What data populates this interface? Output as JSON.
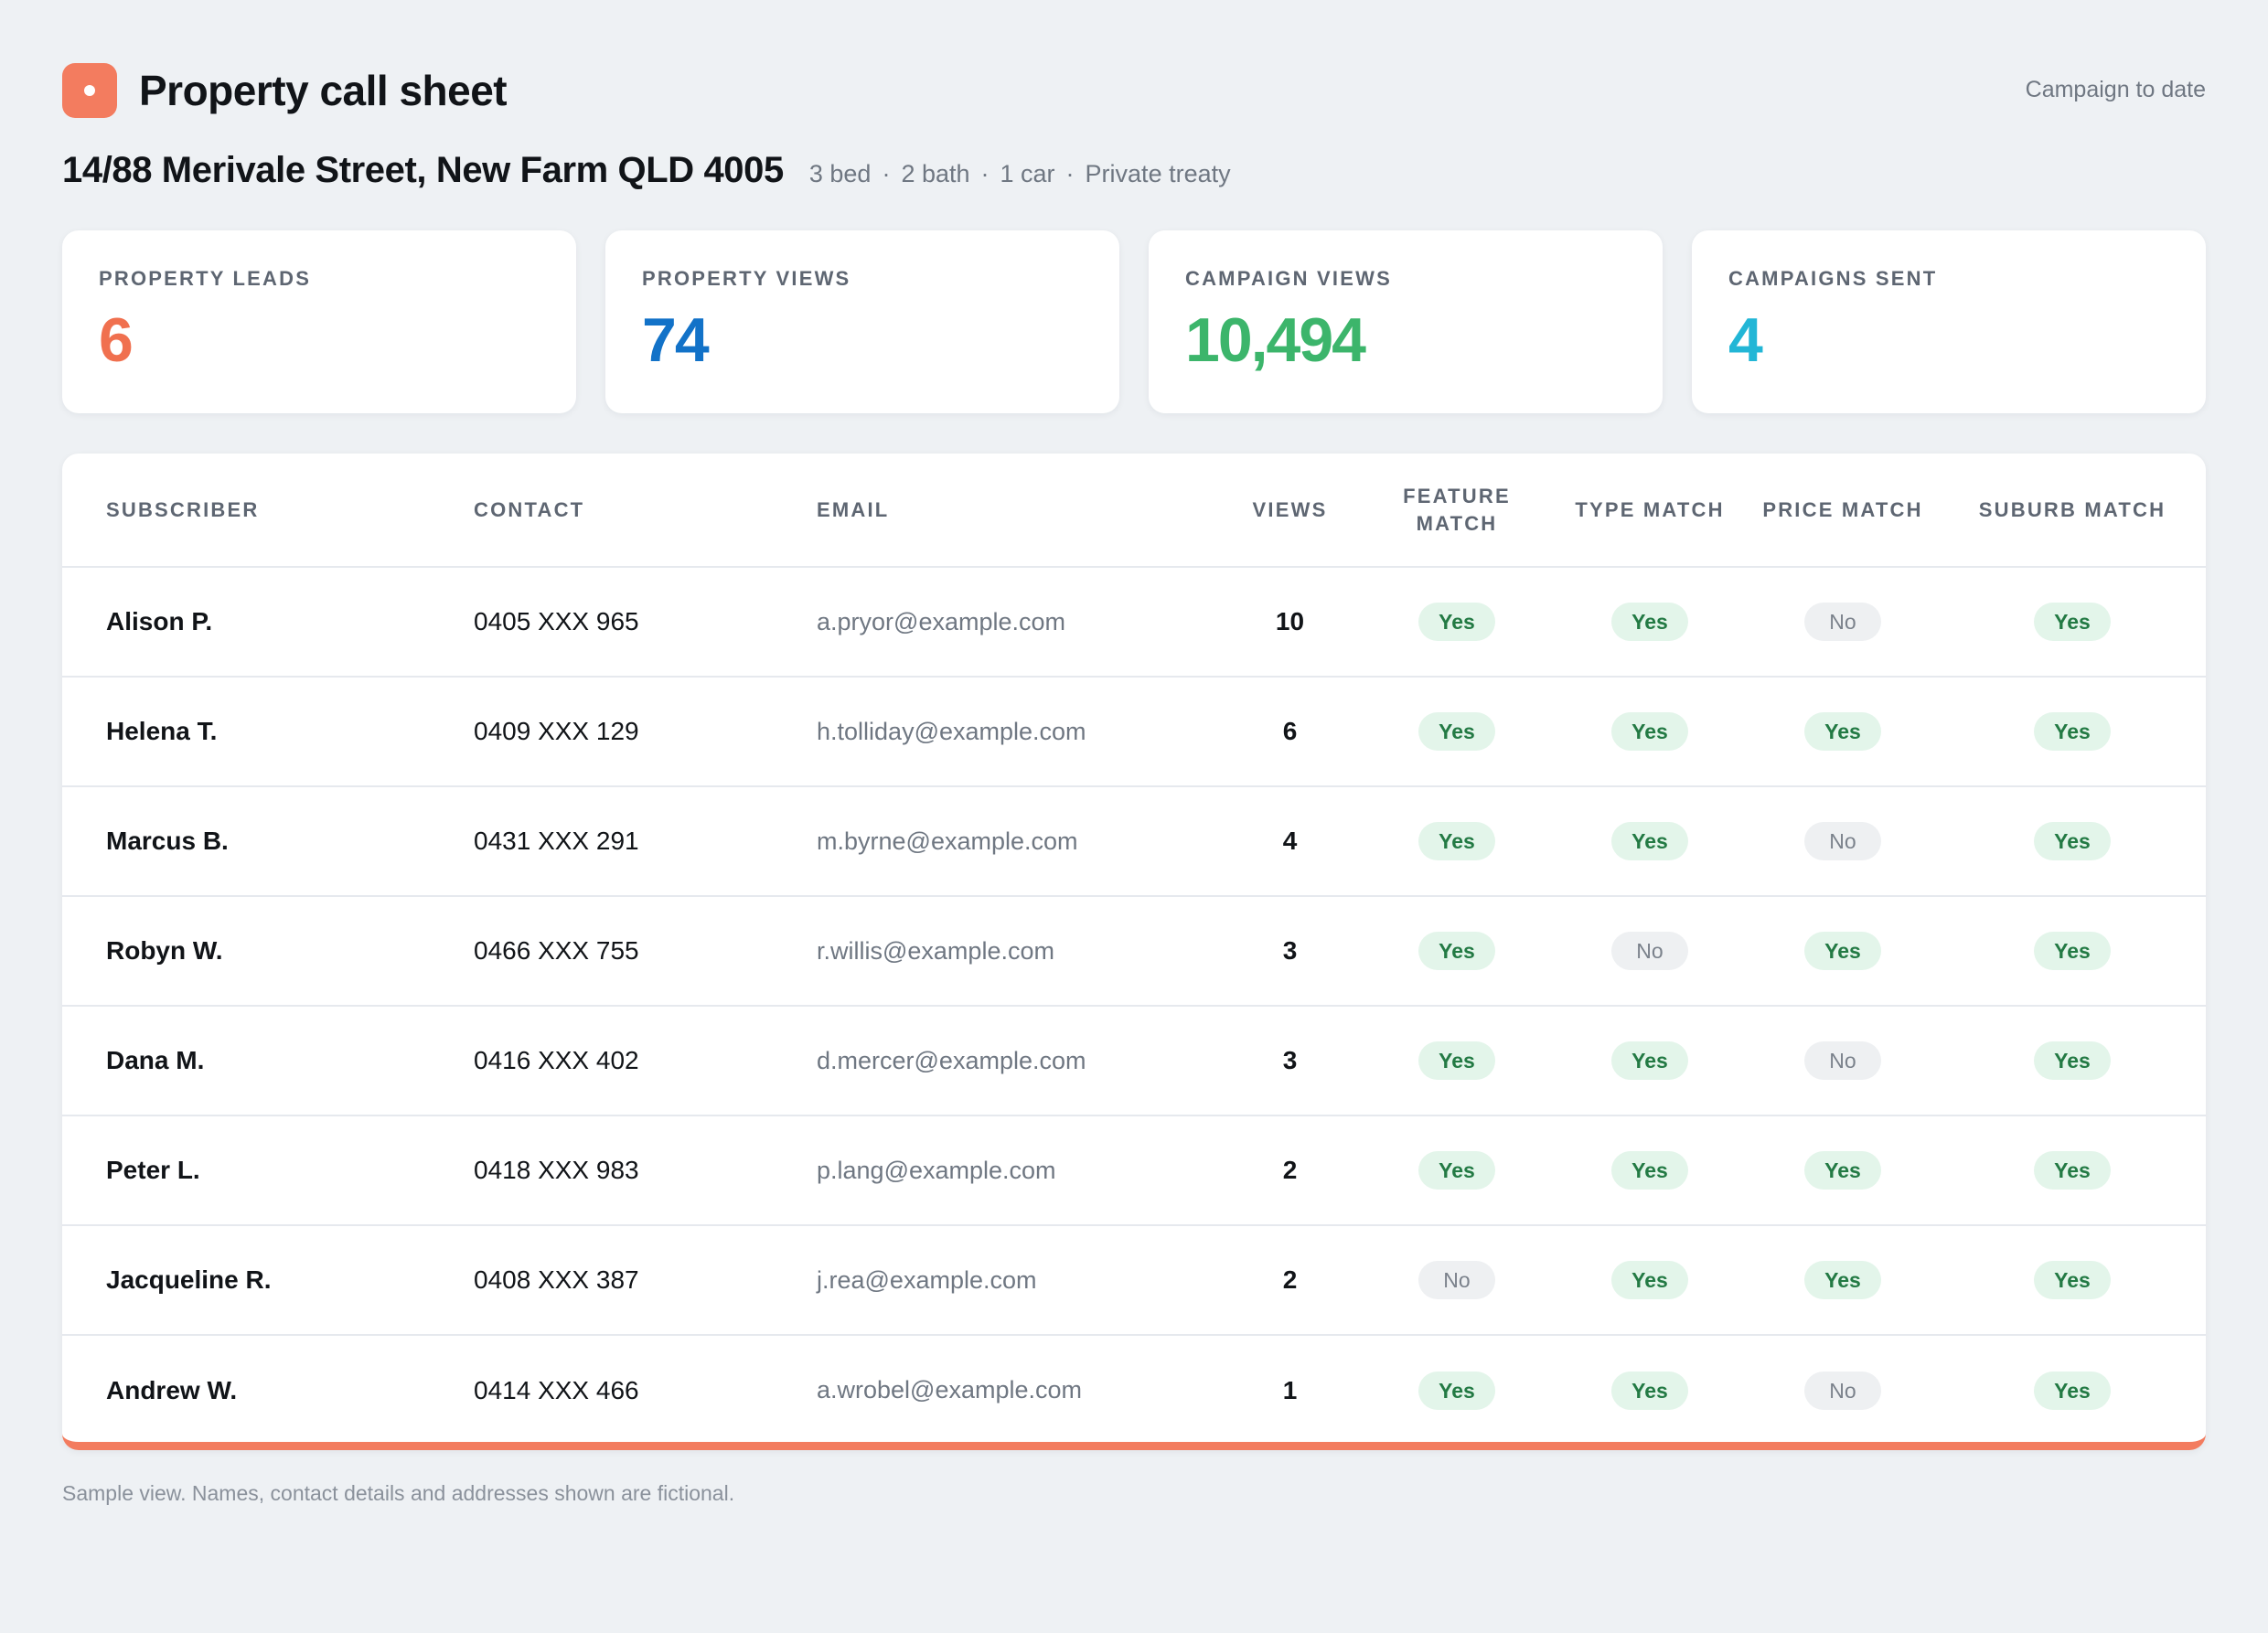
{
  "header": {
    "title": "Property call sheet",
    "campaign_link": "Campaign to date"
  },
  "property": {
    "address": "14/88 Merivale Street, New Farm QLD 4005",
    "specs": [
      "3 bed",
      "2 bath",
      "1 car",
      "Private treaty"
    ]
  },
  "stats": [
    {
      "label": "PROPERTY LEADS",
      "value": "6",
      "color": "#f0704f"
    },
    {
      "label": "PROPERTY VIEWS",
      "value": "74",
      "color": "#1272c8"
    },
    {
      "label": "CAMPAIGN VIEWS",
      "value": "10,494",
      "color": "#3cb56b"
    },
    {
      "label": "CAMPAIGNS SENT",
      "value": "4",
      "color": "#22b6d6"
    }
  ],
  "table": {
    "columns": [
      "SUBSCRIBER",
      "CONTACT",
      "EMAIL",
      "VIEWS",
      "FEATURE MATCH",
      "TYPE MATCH",
      "PRICE MATCH",
      "SUBURB MATCH"
    ],
    "rows": [
      {
        "subscriber": "Alison P.",
        "contact": "0405 XXX 965",
        "email": "a.pryor@example.com",
        "views": "10",
        "feature": "Yes",
        "type": "Yes",
        "price": "No",
        "suburb": "Yes"
      },
      {
        "subscriber": "Helena T.",
        "contact": "0409 XXX 129",
        "email": "h.tolliday@example.com",
        "views": "6",
        "feature": "Yes",
        "type": "Yes",
        "price": "Yes",
        "suburb": "Yes"
      },
      {
        "subscriber": "Marcus B.",
        "contact": "0431 XXX 291",
        "email": "m.byrne@example.com",
        "views": "4",
        "feature": "Yes",
        "type": "Yes",
        "price": "No",
        "suburb": "Yes"
      },
      {
        "subscriber": "Robyn W.",
        "contact": "0466 XXX 755",
        "email": "r.willis@example.com",
        "views": "3",
        "feature": "Yes",
        "type": "No",
        "price": "Yes",
        "suburb": "Yes"
      },
      {
        "subscriber": "Dana M.",
        "contact": "0416 XXX 402",
        "email": "d.mercer@example.com",
        "views": "3",
        "feature": "Yes",
        "type": "Yes",
        "price": "No",
        "suburb": "Yes"
      },
      {
        "subscriber": "Peter L.",
        "contact": "0418 XXX 983",
        "email": "p.lang@example.com",
        "views": "2",
        "feature": "Yes",
        "type": "Yes",
        "price": "Yes",
        "suburb": "Yes"
      },
      {
        "subscriber": "Jacqueline R.",
        "contact": "0408 XXX 387",
        "email": "j.rea@example.com",
        "views": "2",
        "feature": "No",
        "type": "Yes",
        "price": "Yes",
        "suburb": "Yes"
      },
      {
        "subscriber": "Andrew W.",
        "contact": "0414 XXX 466",
        "email": "a.wrobel@example.com",
        "views": "1",
        "feature": "Yes",
        "type": "Yes",
        "price": "No",
        "suburb": "Yes"
      }
    ]
  },
  "footnote": "Sample view. Names, contact details and addresses shown are fictional.",
  "colors": {
    "accent": "#f37c5f",
    "yes_bg": "#e3f5ea",
    "yes_text": "#237a44",
    "no_bg": "#eef0f2"
  }
}
